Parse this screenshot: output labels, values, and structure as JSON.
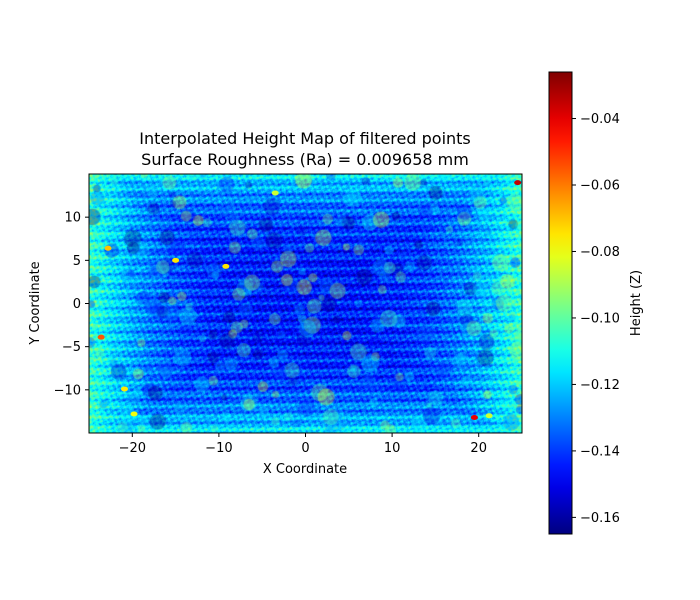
{
  "chart_data": {
    "type": "heatmap",
    "title": "Interpolated Height Map of filtered points",
    "subtitle": "Surface Roughness (Ra) = 0.009658 mm",
    "xlabel": "X Coordinate",
    "ylabel": "Y Coordinate",
    "xlim": [
      -25,
      25
    ],
    "ylim": [
      -15,
      15
    ],
    "x_ticks": [
      -20,
      -10,
      0,
      10,
      20
    ],
    "y_ticks": [
      -10,
      -5,
      0,
      5,
      10
    ],
    "x_tick_labels": [
      "−20",
      "−10",
      "0",
      "10",
      "20"
    ],
    "y_tick_labels": [
      "−10",
      "−5",
      "0",
      "5",
      "10"
    ],
    "grid": false,
    "colormap": "jet",
    "colorbar": {
      "label": "Height (Z)",
      "range": [
        -0.165,
        -0.026
      ],
      "ticks": [
        -0.16,
        -0.14,
        -0.12,
        -0.1,
        -0.08,
        -0.06,
        -0.04
      ],
      "tick_labels": [
        "−0.16",
        "−0.14",
        "−0.12",
        "−0.10",
        "−0.08",
        "−0.06",
        "−0.04"
      ]
    },
    "z_summary": {
      "typical_range": [
        -0.15,
        -0.11
      ],
      "edges_higher": -0.105,
      "center_lower": -0.145
    },
    "hotspots": [
      {
        "x": 24.5,
        "y": 14.0,
        "z": -0.035
      },
      {
        "x": 19.5,
        "y": -13.2,
        "z": -0.04
      },
      {
        "x": -23.6,
        "y": -3.9,
        "z": -0.055
      },
      {
        "x": -22.8,
        "y": 6.4,
        "z": -0.07
      },
      {
        "x": -9.2,
        "y": 4.3,
        "z": -0.075
      },
      {
        "x": -15.0,
        "y": 5.0,
        "z": -0.075
      },
      {
        "x": -20.9,
        "y": -9.9,
        "z": -0.075
      },
      {
        "x": -19.8,
        "y": -12.8,
        "z": -0.08
      },
      {
        "x": -3.5,
        "y": 12.8,
        "z": -0.085
      },
      {
        "x": 21.2,
        "y": -13.0,
        "z": -0.085
      }
    ]
  }
}
